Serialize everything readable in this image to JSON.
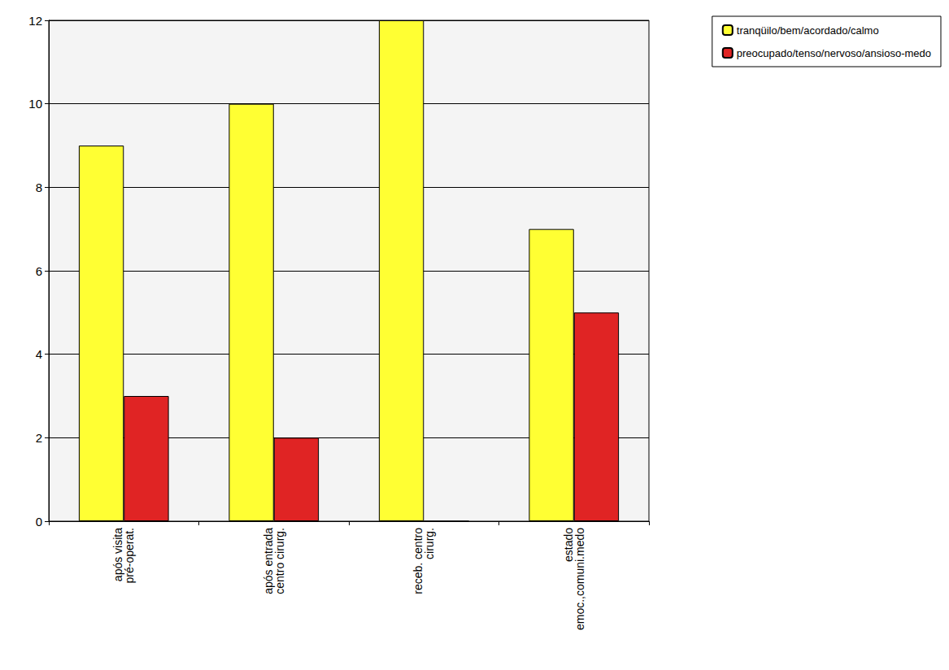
{
  "chart_data": {
    "type": "bar",
    "categories": [
      "após visita pré-operat.",
      "após entrada centro cirurg.",
      "receb. centro cirurg.",
      "estado emoc.,comuni.medo"
    ],
    "series": [
      {
        "name": "tranqüilo/bem/acordado/calmo",
        "color": "#ffff33",
        "values": [
          9,
          10,
          12,
          7
        ]
      },
      {
        "name": "preocupado/tenso/nervoso/ansioso-medo",
        "color": "#e02424",
        "values": [
          3,
          2,
          0,
          5
        ]
      }
    ],
    "ylim": [
      0,
      12
    ],
    "yticks": [
      0,
      2,
      4,
      6,
      8,
      10,
      12
    ],
    "grid": true,
    "legend": "top-right"
  }
}
